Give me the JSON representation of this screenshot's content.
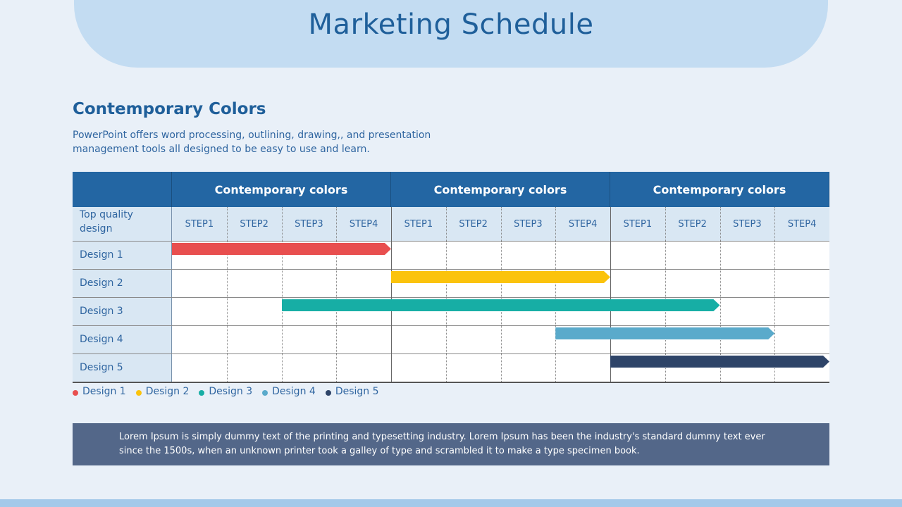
{
  "title": "Marketing Schedule",
  "section_title": "Contemporary Colors",
  "description": "PowerPoint offers word processing, outlining, drawing,, and presentation management tools all designed to be easy to use and learn.",
  "footer_text": "Lorem Ipsum is simply dummy text of the printing and typesetting industry. Lorem Ipsum has been the industry's standard dummy text ever since the 1500s, when an unknown printer took a galley of type and scrambled it to make a type specimen book.",
  "chart_data": {
    "type": "table",
    "corner_label": "Top quality design",
    "groups": [
      "Contemporary colors",
      "Contemporary colors",
      "Contemporary colors"
    ],
    "steps": [
      "STEP1",
      "STEP2",
      "STEP3",
      "STEP4",
      "STEP1",
      "STEP2",
      "STEP3",
      "STEP4",
      "STEP1",
      "STEP2",
      "STEP3",
      "STEP4"
    ],
    "rows": [
      {
        "label": "Design 1",
        "start_step": 0,
        "end_step": 4,
        "color": "#e84f4f"
      },
      {
        "label": "Design 2",
        "start_step": 4,
        "end_step": 8,
        "color": "#fbc30c"
      },
      {
        "label": "Design 3",
        "start_step": 2,
        "end_step": 10,
        "color": "#17aea5"
      },
      {
        "label": "Design 4",
        "start_step": 7,
        "end_step": 11,
        "color": "#5aaacb"
      },
      {
        "label": "Design 5",
        "start_step": 8,
        "end_step": 12,
        "color": "#2e4468"
      }
    ],
    "legend": [
      {
        "label": "Design 1",
        "color": "#e84f4f"
      },
      {
        "label": "Design 2",
        "color": "#fbc30c"
      },
      {
        "label": "Design 3",
        "color": "#17aea5"
      },
      {
        "label": "Design 4",
        "color": "#5aaacb"
      },
      {
        "label": "Design 5",
        "color": "#2e4468"
      }
    ]
  }
}
